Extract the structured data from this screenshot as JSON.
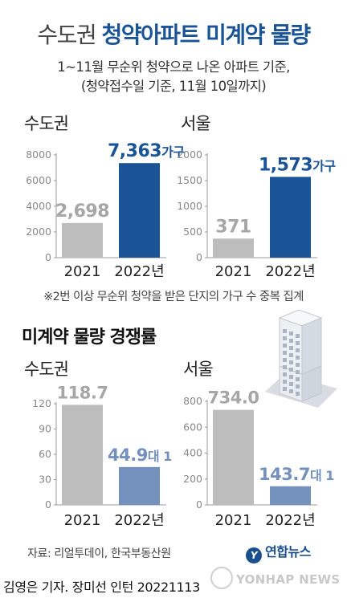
{
  "header": {
    "title_light": "수도권",
    "title_bold": "청약아파트 미계약 물량",
    "subtitle_line1": "1~11월 무순위 청약으로 나온 아파트 기준,",
    "subtitle_line2": "(청약접수일 기준, 11월 10일까지)"
  },
  "note": "※2번 이상 무순위 청약을 받은 단지의 가구 수 중복 집계",
  "section2_title": "미계약 물량 경쟁률",
  "regions": {
    "capital": "수도권",
    "seoul": "서울"
  },
  "source": "자료: 리얼투데이, 한국부동산원",
  "logo_text": "연합뉴스",
  "watermark": "YONHAP NEWS",
  "credit": "김영은 기자. 장미선 인턴  20221113",
  "colors": {
    "accent_dark": "#1a5496",
    "accent_light": "#7391bc",
    "gray_bar": "#bdbdbd",
    "gray_label": "#a6a6a6"
  },
  "chart_data": [
    {
      "type": "bar",
      "panel": "수도권",
      "categories": [
        "2021",
        "2022년"
      ],
      "values": [
        2698,
        7363
      ],
      "value_labels": [
        "2,698",
        "7,363"
      ],
      "unit": "가구",
      "ylim": [
        0,
        8000
      ],
      "yticks": [
        0,
        2000,
        4000,
        6000,
        8000
      ],
      "ytick_labels": [
        "0",
        "2000",
        "4000",
        "6000",
        "8000"
      ]
    },
    {
      "type": "bar",
      "panel": "서울",
      "categories": [
        "2021",
        "2022년"
      ],
      "values": [
        371,
        1573
      ],
      "value_labels": [
        "371",
        "1,573"
      ],
      "unit": "가구",
      "ylim": [
        0,
        2000
      ],
      "yticks": [
        0,
        500,
        1000,
        1500,
        2000
      ],
      "ytick_labels": [
        "0",
        "500",
        "1000",
        "1500",
        "2000"
      ]
    },
    {
      "type": "bar",
      "panel": "수도권",
      "categories": [
        "2021",
        "2022년"
      ],
      "values": [
        118.7,
        44.9
      ],
      "value_labels": [
        "118.7",
        "44.9"
      ],
      "unit": "대 1",
      "ylim": [
        0,
        120
      ],
      "yticks": [
        0,
        30,
        60,
        90,
        120
      ],
      "ytick_labels": [
        "0",
        "30",
        "60",
        "90",
        "120"
      ]
    },
    {
      "type": "bar",
      "panel": "서울",
      "categories": [
        "2021",
        "2022년"
      ],
      "values": [
        734.0,
        143.7
      ],
      "value_labels": [
        "734.0",
        "143.7"
      ],
      "unit": "대 1",
      "ylim": [
        0,
        800
      ],
      "yticks": [
        0,
        200,
        400,
        600,
        800
      ],
      "ytick_labels": [
        "0",
        "200",
        "400",
        "600",
        "800"
      ]
    }
  ]
}
